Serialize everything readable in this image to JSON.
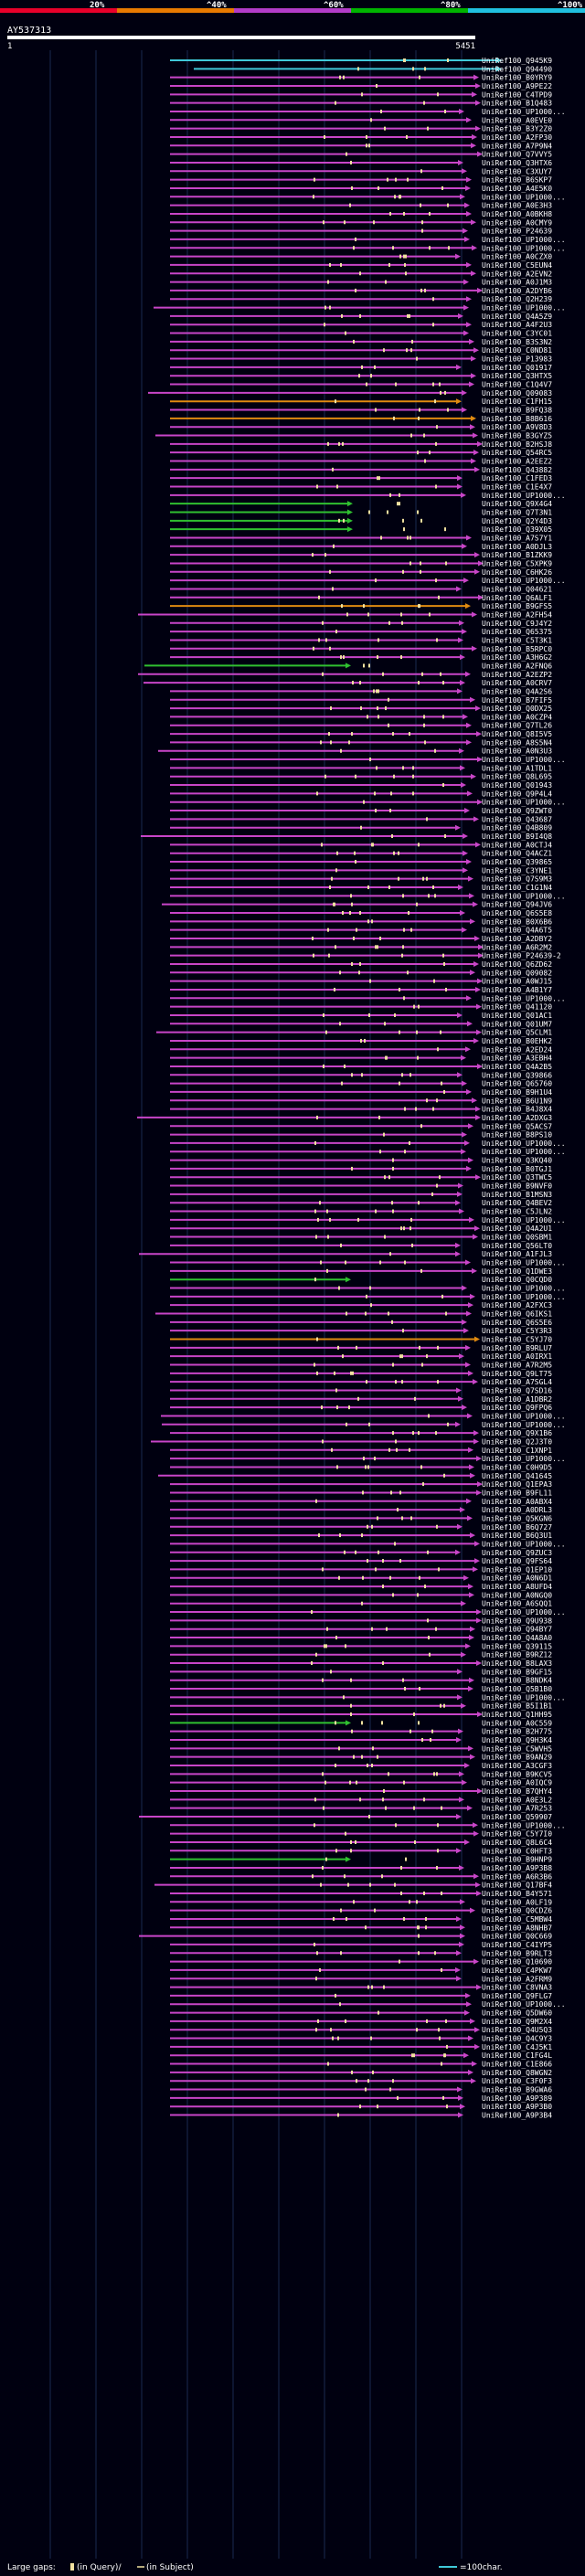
{
  "chart_data": {
    "type": "alignment-map",
    "query_id": "AY537313",
    "query_start": "1",
    "query_end": "5451",
    "scale_ticks": [
      "20%",
      "^40%",
      "^60%",
      "^80%",
      "^100%"
    ],
    "scale_colors": [
      "#e8002a",
      "#e87a00",
      "#b23cc8",
      "#00b400",
      "#20c0e0"
    ],
    "colors": {
      "background": "#000010",
      "hit": "#c845c8",
      "cyan": "#40c8d8",
      "green": "#30c030",
      "orange": "#e08a10",
      "gap": "#f0e0a0",
      "text": "#ffffff"
    },
    "legend": {
      "large_gaps": "Large gaps:",
      "in_query": "(in Query)/",
      "in_subject": "(in Subject)",
      "scale_note": "=100char."
    },
    "hit_labels": [
      "UniRef100_Q945K9",
      "UniRef100_Q94490",
      "UniRef100_B0YRY9",
      "UniRef100_A9PE22",
      "UniRef100_C4TPD9",
      "UniRef100_B1Q483",
      "UniRef100_UP1000...",
      "UniRef100_A0EVE0",
      "UniRef100_B3Y2Z0",
      "UniRef100_A2FP30",
      "UniRef100_A7P9N4",
      "UniRef100_Q7VVY5",
      "UniRef100_Q3HTX6",
      "UniRef100_C3XUY7",
      "UniRef100_B6SKP7",
      "UniRef100_A4E5K0",
      "UniRef100_UP1000...",
      "UniRef100_A0E3H3",
      "UniRef100_A0BKH8",
      "UniRef100_A0CMY9",
      "UniRef100_P24639",
      "UniRef100_UP1000...",
      "UniRef100_UP1000...",
      "UniRef100_A0CZX0",
      "UniRef100_C5EUN4",
      "UniRef100_A2EVN2",
      "UniRef100_A0J1M3",
      "UniRef100_A2DYB6",
      "UniRef100_Q2H239",
      "UniRef100_UP1000...",
      "UniRef100_Q4A5Z9",
      "UniRef100_A4F2U3",
      "UniRef100_C3YC01",
      "UniRef100_B3S3N2",
      "UniRef100_C0ND81",
      "UniRef100_P13983",
      "UniRef100_Q01917",
      "UniRef100_Q3HTX5",
      "UniRef100_C1Q4V7",
      "UniRef100_Q09083",
      "UniRef100_C1FH15",
      "UniRef100_B9FQ38",
      "UniRef100_B8B616",
      "UniRef100_A9V8D3",
      "UniRef100_B3GYZ5",
      "UniRef100_B2HSJ8",
      "UniRef100_Q54RC5",
      "UniRef100_A2EEZ2",
      "UniRef100_Q43882",
      "UniRef100_C1FED3",
      "UniRef100_C1E4X7",
      "UniRef100_UP1000...",
      "UniRef100_Q9X4G4",
      "UniRef100_Q7T3N1",
      "UniRef100_Q2Y4D3",
      "UniRef100_Q39X05",
      "UniRef100_A7S7Y1",
      "UniRef100_A0DJL3",
      "UniRef100_B1ZKK9",
      "UniRef100_C5XPK9",
      "UniRef100_C6HK26",
      "UniRef100_UP1000...",
      "UniRef100_Q04621",
      "UniRef100_Q6ALF1",
      "UniRef100_B9GFS5",
      "UniRef100_A2FH54",
      "UniRef100_C9J4Y2",
      "UniRef100_Q65375",
      "UniRef100_C5T3K1",
      "UniRef100_B5RPC0",
      "UniRef100_A3H6G2",
      "UniRef100_A2FNQ6",
      "UniRef100_A2EZP2",
      "UniRef100_A0CRV7",
      "UniRef100_Q4A2S6",
      "UniRef100_B7FIF5",
      "UniRef100_Q0DX25",
      "UniRef100_A0CZP4",
      "UniRef100_Q7TL26",
      "UniRef100_Q8I5V5",
      "UniRef100_A8S5N4",
      "UniRef100_A0N3U3",
      "UniRef100_UP1000...",
      "UniRef100_A1TDL1",
      "UniRef100_Q8L695",
      "UniRef100_Q01943",
      "UniRef100_Q9P4L4",
      "UniRef100_UP1000...",
      "UniRef100_Q9ZWT0",
      "UniRef100_Q43687",
      "UniRef100_Q4B809",
      "UniRef100_B9I4Q8",
      "UniRef100_A0CTJ4",
      "UniRef100_Q4ACZ1",
      "UniRef100_Q39865",
      "UniRef100_C3YNE1",
      "UniRef100_Q7S9M3",
      "UniRef100_C1G1N4",
      "UniRef100_UP1000...",
      "UniRef100_Q94JV6",
      "UniRef100_Q6S5E8",
      "UniRef100_B0X6B6",
      "UniRef100_Q4A6T5",
      "UniRef100_A2DBY2",
      "UniRef100_A6R2M2",
      "UniRef100_P24639-2",
      "UniRef100_Q6ZD62",
      "UniRef100_Q09082",
      "UniRef100_A0WJ15",
      "UniRef100_A4B1Y7",
      "UniRef100_UP1000...",
      "UniRef100_Q41120",
      "UniRef100_Q01AC1",
      "UniRef100_Q01UM7",
      "UniRef100_Q5CLM1",
      "UniRef100_B0EHK2",
      "UniRef100_A2ED24",
      "UniRef100_A3EBH4",
      "UniRef100_Q4A2B5",
      "UniRef100_Q39866",
      "UniRef100_Q65760",
      "UniRef100_B9H1U4",
      "UniRef100_B6U1N9",
      "UniRef100_B4J8X4",
      "UniRef100_A2DXG3",
      "UniRef100_Q5ACS7",
      "UniRef100_B8PS10",
      "UniRef100_UP1000...",
      "UniRef100_UP1000...",
      "UniRef100_Q3KQ40",
      "UniRef100_B0TGJ1",
      "UniRef100_Q3TWC5",
      "UniRef100_B9NVF0",
      "UniRef100_B1MSN3",
      "UniRef100_Q4BEV2",
      "UniRef100_C5JLN2",
      "UniRef100_UP1000...",
      "UniRef100_Q4A2U1",
      "UniRef100_Q0SBM1",
      "UniRef100_Q56LT0",
      "UniRef100_A1FJL3",
      "UniRef100_UP1000...",
      "UniRef100_Q1DWE3",
      "UniRef100_Q0CQD0",
      "UniRef100_UP1000...",
      "UniRef100_UP1000...",
      "UniRef100_A2FXC3",
      "UniRef100_Q6IKS1",
      "UniRef100_Q6S5E6",
      "UniRef100_C5Y3R3",
      "UniRef100_C5YJ70",
      "UniRef100_B9RLU7",
      "UniRef100_A0IRX1",
      "UniRef100_A7R2M5",
      "UniRef100_Q9LT75",
      "UniRef100_A7SGL4",
      "UniRef100_Q7SD16",
      "UniRef100_A1DBR2",
      "UniRef100_Q9FPQ6",
      "UniRef100_UP1000...",
      "UniRef100_UP1000...",
      "UniRef100_Q9X1B6",
      "UniRef100_Q2J3T0",
      "UniRef100_C1XNP1",
      "UniRef100_UP1000...",
      "UniRef100_C0H9D5",
      "UniRef100_Q41645",
      "UniRef100_Q1EPA3",
      "UniRef100_B9FL11",
      "UniRef100_A0ABX4",
      "UniRef100_A0DRL3",
      "UniRef100_Q5KGN6",
      "UniRef100_B6Q727",
      "UniRef100_B6Q3U1",
      "UniRef100_UP1000...",
      "UniRef100_Q9ZUC3",
      "UniRef100_Q9FS64",
      "UniRef100_Q1EP10",
      "UniRef100_A0N6D1",
      "UniRef100_A8UFD4",
      "UniRef100_A0NGQ0",
      "UniRef100_A6SQQ1",
      "UniRef100_UP1000...",
      "UniRef100_Q9U938",
      "UniRef100_Q94BY7",
      "UniRef100_Q4A8A0",
      "UniRef100_Q39115",
      "UniRef100_B9RZ12",
      "UniRef100_B8LAX3",
      "UniRef100_B9GF15",
      "UniRef100_B8NDK4",
      "UniRef100_Q5B1B0",
      "UniRef100_UP1000...",
      "UniRef100_B5I1B1",
      "UniRef100_Q1HH95",
      "UniRef100_A0C559",
      "UniRef100_B2H775",
      "UniRef100_Q9H3K4",
      "UniRef100_C5WVH5",
      "UniRef100_B9AN29",
      "UniRef100_A3CGF3",
      "UniRef100_B9KCV5",
      "UniRef100_A0IQC9",
      "UniRef100_B7QHY4",
      "UniRef100_A0E3L2",
      "UniRef100_A7R253",
      "UniRef100_Q59907",
      "UniRef100_UP1000...",
      "UniRef100_C5Y7I0",
      "UniRef100_Q8L6C4",
      "UniRef100_C0HFT3",
      "UniRef100_B9HNP9",
      "UniRef100_A9P3B8",
      "UniRef100_A6R3B6",
      "UniRef100_Q17BF4",
      "UniRef100_B4Y571",
      "UniRef100_A0LF19",
      "UniRef100_Q0CDZ6",
      "UniRef100_C5MBW4",
      "UniRef100_A8NHB7",
      "UniRef100_Q0C669",
      "UniRef100_C4IYP5",
      "UniRef100_B9RLT3",
      "UniRef100_Q10690",
      "UniRef100_C4PKW7",
      "UniRef100_A2FRM9",
      "UniRef100_C8VNA3",
      "UniRef100_Q9FLG7",
      "UniRef100_UP1000...",
      "UniRef100_Q5DW60",
      "UniRef100_Q9M2X4",
      "UniRef100_Q4U5Q3",
      "UniRef100_Q4C9Y3",
      "UniRef100_C4J5K1",
      "UniRef100_C1FG4L",
      "UniRef100_C1E866",
      "UniRef100_Q8WGN2",
      "UniRef100_C3F0F3",
      "UniRef100_B9GWA6",
      "UniRef100_A9P389",
      "UniRef100_A9P3B0",
      "UniRef100_A9P3B4"
    ]
  }
}
